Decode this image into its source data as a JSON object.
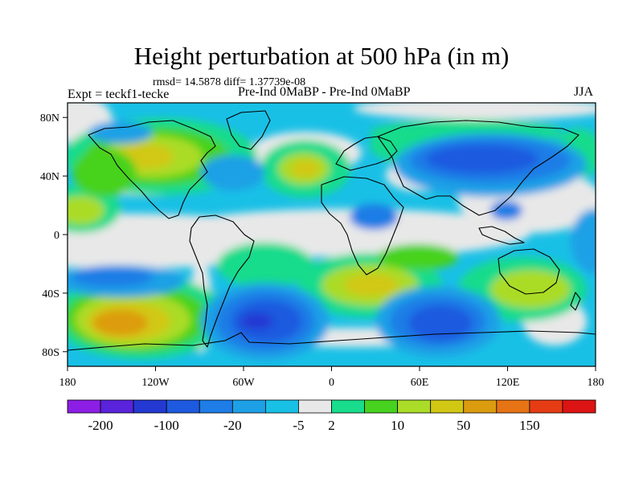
{
  "title": "Height perturbation at 500 hPa (in m)",
  "stats": "rmsd= 14.5878 diff= 1.37739e-08",
  "experiment": "Expt = teckf1-tecke",
  "comparison": "Pre-Ind 0MaBP - Pre-Ind 0MaBP",
  "season": "JJA",
  "axes": {
    "lat_ticks": [
      {
        "label": "80N",
        "value": 80
      },
      {
        "label": "40N",
        "value": 40
      },
      {
        "label": "0",
        "value": 0
      },
      {
        "label": "40S",
        "value": -40
      },
      {
        "label": "80S",
        "value": -80
      }
    ],
    "lon_ticks": [
      {
        "label": "180",
        "value": -180
      },
      {
        "label": "120W",
        "value": -120
      },
      {
        "label": "60W",
        "value": -60
      },
      {
        "label": "0",
        "value": 0
      },
      {
        "label": "60E",
        "value": 60
      },
      {
        "label": "120E",
        "value": 120
      },
      {
        "label": "180",
        "value": 180
      }
    ],
    "lat_range": [
      -90,
      90
    ],
    "lon_range": [
      -180,
      180
    ]
  },
  "colorbar": {
    "colors": [
      "#8c1ee6",
      "#5a23dc",
      "#2339d2",
      "#1e5ae0",
      "#1e7de6",
      "#1ea0e6",
      "#19c0e6",
      "#e8e8e8",
      "#19dc8c",
      "#46d21e",
      "#aadc28",
      "#d2c814",
      "#dc9c10",
      "#e67314",
      "#e63c14",
      "#dc1414"
    ],
    "labels": [
      {
        "text": "-200",
        "after_box": 1
      },
      {
        "text": "-100",
        "after_box": 3
      },
      {
        "text": "-20",
        "after_box": 5
      },
      {
        "text": "-5",
        "after_box": 7
      },
      {
        "text": "2",
        "after_box": 8
      },
      {
        "text": "10",
        "after_box": 10
      },
      {
        "text": "50",
        "after_box": 12
      },
      {
        "text": "150",
        "after_box": 14
      }
    ]
  },
  "field_colors": {
    "neutral": "#e8e8e8",
    "pos_small": "#19dc8c",
    "pos_mid": "#46d21e",
    "pos_high": "#aadc28",
    "pos_higher": "#d2c814",
    "pos_max": "#dc9c10",
    "neg_small": "#19c0e6",
    "neg_mid": "#1ea0e6",
    "neg_high": "#1e7de6",
    "neg_higher": "#1e5ae0",
    "neg_max": "#2339d2"
  }
}
